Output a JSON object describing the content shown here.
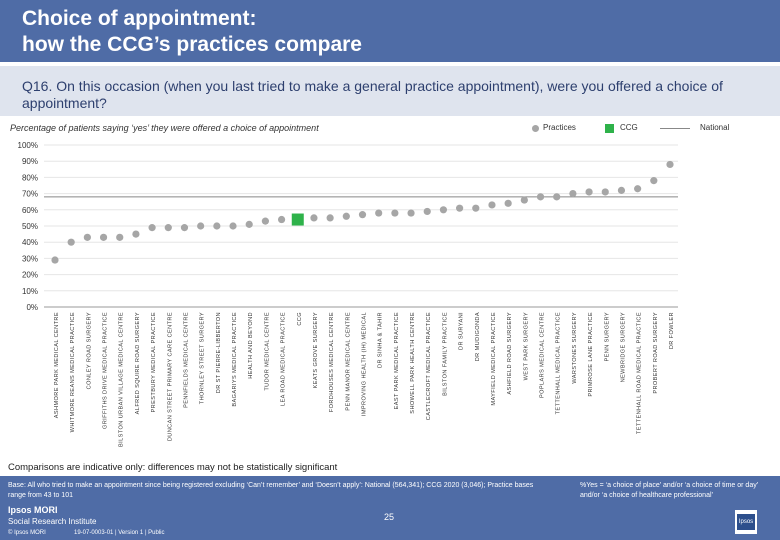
{
  "header": {
    "title_line1": "Choice of appointment:",
    "title_line2": "how the CCG’s practices compare"
  },
  "question": "Q16. On this occasion (when you last tried to make a general practice appointment), were you offered a choice of appointment?",
  "subtitle": "Percentage of patients saying ‘yes’ they were offered a choice of appointment",
  "legend": {
    "practices": "Practices",
    "ccg": "CCG",
    "national": "National"
  },
  "colors": {
    "header": "#4f6ca6",
    "practice": "#a6a6a6",
    "ccg": "#2eb24a",
    "national": "#888888"
  },
  "chart_data": {
    "type": "scatter",
    "title": "Percentage of patients saying ‘yes’ they were offered a choice of appointment",
    "ylim": [
      0,
      100
    ],
    "yticks": [
      "0%",
      "10%",
      "20%",
      "30%",
      "40%",
      "50%",
      "60%",
      "70%",
      "80%",
      "90%",
      "100%"
    ],
    "categories": [
      "ASHMORE PARK MEDICAL CENTRE",
      "WHITMORE REANS MEDICAL PRACTICE",
      "CONLEY ROAD SURGERY",
      "GRIFFITHS DRIVE MEDICAL PRACTICE",
      "BILSTON URBAN VILLAGE MEDICAL CENTRE",
      "ALFRED SQUIRE ROAD SURGERY",
      "PRESTBURY MEDICAL PRACTICE",
      "DUNCAN STREET PRIMARY CARE CENTRE",
      "PENNFIELDS MEDICAL CENTRE",
      "THORNLEY STREET SURGERY",
      "DR ST PIERRE-LIBBERTON",
      "BAGARIYS MEDICAL PRACTICE",
      "HEALTH AND BEYOND",
      "TUDOR MEDICAL CENTRE",
      "LEA ROAD MEDICAL PRACTICE",
      "CCG",
      "KEATS GROVE SURGERY",
      "FORDHOUSES MEDICAL CENTRE",
      "PENN MANOR MEDICAL CENTRE",
      "IMPROVING HEALTH (IH) MEDICAL",
      "DR SINHA & TAHIR",
      "EAST PARK MEDICAL PRACTICE",
      "SHOWELL PARK HEALTH CENTRE",
      "CASTLECROFT MEDICAL PRACTICE",
      "BILSTON FAMILY PRACTICE",
      "DR SURYANI",
      "DR MUDIGONDA",
      "MAYFIELD MEDICAL PRACTICE",
      "ASHFIELD ROAD SURGERY",
      "WEST PARK SURGERY",
      "POPLARS MEDICAL CENTRE",
      "TETTENHALL MEDICAL PRACTICE",
      "WARSTONES SURGERY",
      "PRIMROSE LANE PRACTICE",
      "PENN SURGERY",
      "NEWBRIDGE SURGERY",
      "TETTENHALL ROAD MEDICAL PRACTICE",
      "PROBERT ROAD SURGERY",
      "DR FOWLER"
    ],
    "values": [
      29,
      40,
      43,
      43,
      43,
      45,
      49,
      49,
      49,
      50,
      50,
      50,
      51,
      53,
      54,
      54,
      55,
      55,
      56,
      57,
      58,
      58,
      58,
      59,
      60,
      61,
      61,
      63,
      64,
      66,
      68,
      68,
      70,
      71,
      71,
      72,
      73,
      78,
      88
    ],
    "ccg_index": 15,
    "national_value": 68
  },
  "note": "Comparisons are indicative only: differences may not be statistically significant",
  "footer": {
    "base": "Base: All who tried to make an appointment since being registered excluding ‘Can’t remember’ and ‘Doesn’t apply’: National (564,341); CCG 2020 (3,046); Practice bases range from 43 to 101",
    "definition": "%Yes = ‘a choice of place’ and/or ‘a choice of time or day’ and/or ‘a choice of healthcare professional’",
    "page": "25",
    "brand1": "Ipsos MORI",
    "brand2": "Social Research Institute",
    "copyright": "© Ipsos MORI",
    "jobref": "19-07-0003-01 | Version 1 | Public",
    "logo": "Ipsos"
  }
}
